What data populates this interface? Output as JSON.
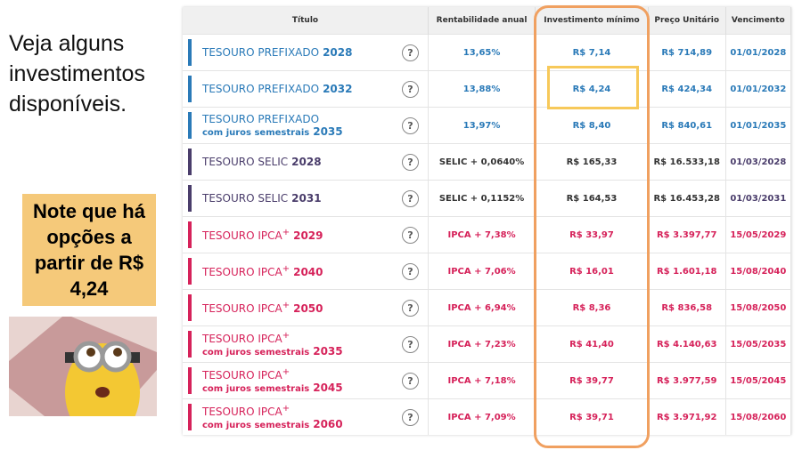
{
  "slide": {
    "intro": "Veja alguns investimentos disponíveis.",
    "note": "Note que há opções a partir de R$ 4,24"
  },
  "table": {
    "headers": [
      "Título",
      "Rentabilidade anual",
      "Investimento mínimo",
      "Preço Unitário",
      "Vencimento"
    ],
    "rows": [
      {
        "name": "TESOURO PREFIXADO",
        "year": "2028",
        "rate": "13,65%",
        "min": "R$ 7,14",
        "price": "R$ 714,89",
        "maturity": "01/01/2028",
        "color": "#2a7ab8"
      },
      {
        "name": "TESOURO PREFIXADO",
        "year": "2032",
        "rate": "13,88%",
        "min": "R$ 4,24",
        "price": "R$ 424,34",
        "maturity": "01/01/2032",
        "color": "#2a7ab8"
      },
      {
        "name": "TESOURO PREFIXADO",
        "sub": "com juros semestrais",
        "year": "2035",
        "rate": "13,97%",
        "min": "R$ 8,40",
        "price": "R$ 840,61",
        "maturity": "01/01/2035",
        "color": "#2a7ab8"
      },
      {
        "name": "TESOURO SELIC",
        "year": "2028",
        "rate": "SELIC + 0,0640%",
        "min": "R$ 165,33",
        "price": "R$ 16.533,18",
        "maturity": "01/03/2028",
        "color": "#4a3d6b"
      },
      {
        "name": "TESOURO SELIC",
        "year": "2031",
        "rate": "SELIC + 0,1152%",
        "min": "R$ 164,53",
        "price": "R$ 16.453,28",
        "maturity": "01/03/2031",
        "color": "#4a3d6b"
      },
      {
        "name": "TESOURO IPCA",
        "sup": "+",
        "year": "2029",
        "rate": "IPCA + 7,38%",
        "min": "R$ 33,97",
        "price": "R$ 3.397,77",
        "maturity": "15/05/2029",
        "color": "#d6225a"
      },
      {
        "name": "TESOURO IPCA",
        "sup": "+",
        "year": "2040",
        "rate": "IPCA + 7,06%",
        "min": "R$ 16,01",
        "price": "R$ 1.601,18",
        "maturity": "15/08/2040",
        "color": "#d6225a"
      },
      {
        "name": "TESOURO IPCA",
        "sup": "+",
        "year": "2050",
        "rate": "IPCA + 6,94%",
        "min": "R$ 8,36",
        "price": "R$ 836,58",
        "maturity": "15/08/2050",
        "color": "#d6225a"
      },
      {
        "name": "TESOURO IPCA",
        "sup": "+",
        "sub": "com juros semestrais",
        "year": "2035",
        "rate": "IPCA + 7,23%",
        "min": "R$ 41,40",
        "price": "R$ 4.140,63",
        "maturity": "15/05/2035",
        "color": "#d6225a"
      },
      {
        "name": "TESOURO IPCA",
        "sup": "+",
        "sub": "com juros semestrais",
        "year": "2045",
        "rate": "IPCA + 7,18%",
        "min": "R$ 39,77",
        "price": "R$ 3.977,59",
        "maturity": "15/05/2045",
        "color": "#d6225a"
      },
      {
        "name": "TESOURO IPCA",
        "sup": "+",
        "sub": "com juros semestrais",
        "year": "2060",
        "rate": "IPCA + 7,09%",
        "min": "R$ 39,71",
        "price": "R$ 3.971,92",
        "maturity": "15/08/2060",
        "color": "#d6225a"
      }
    ]
  }
}
